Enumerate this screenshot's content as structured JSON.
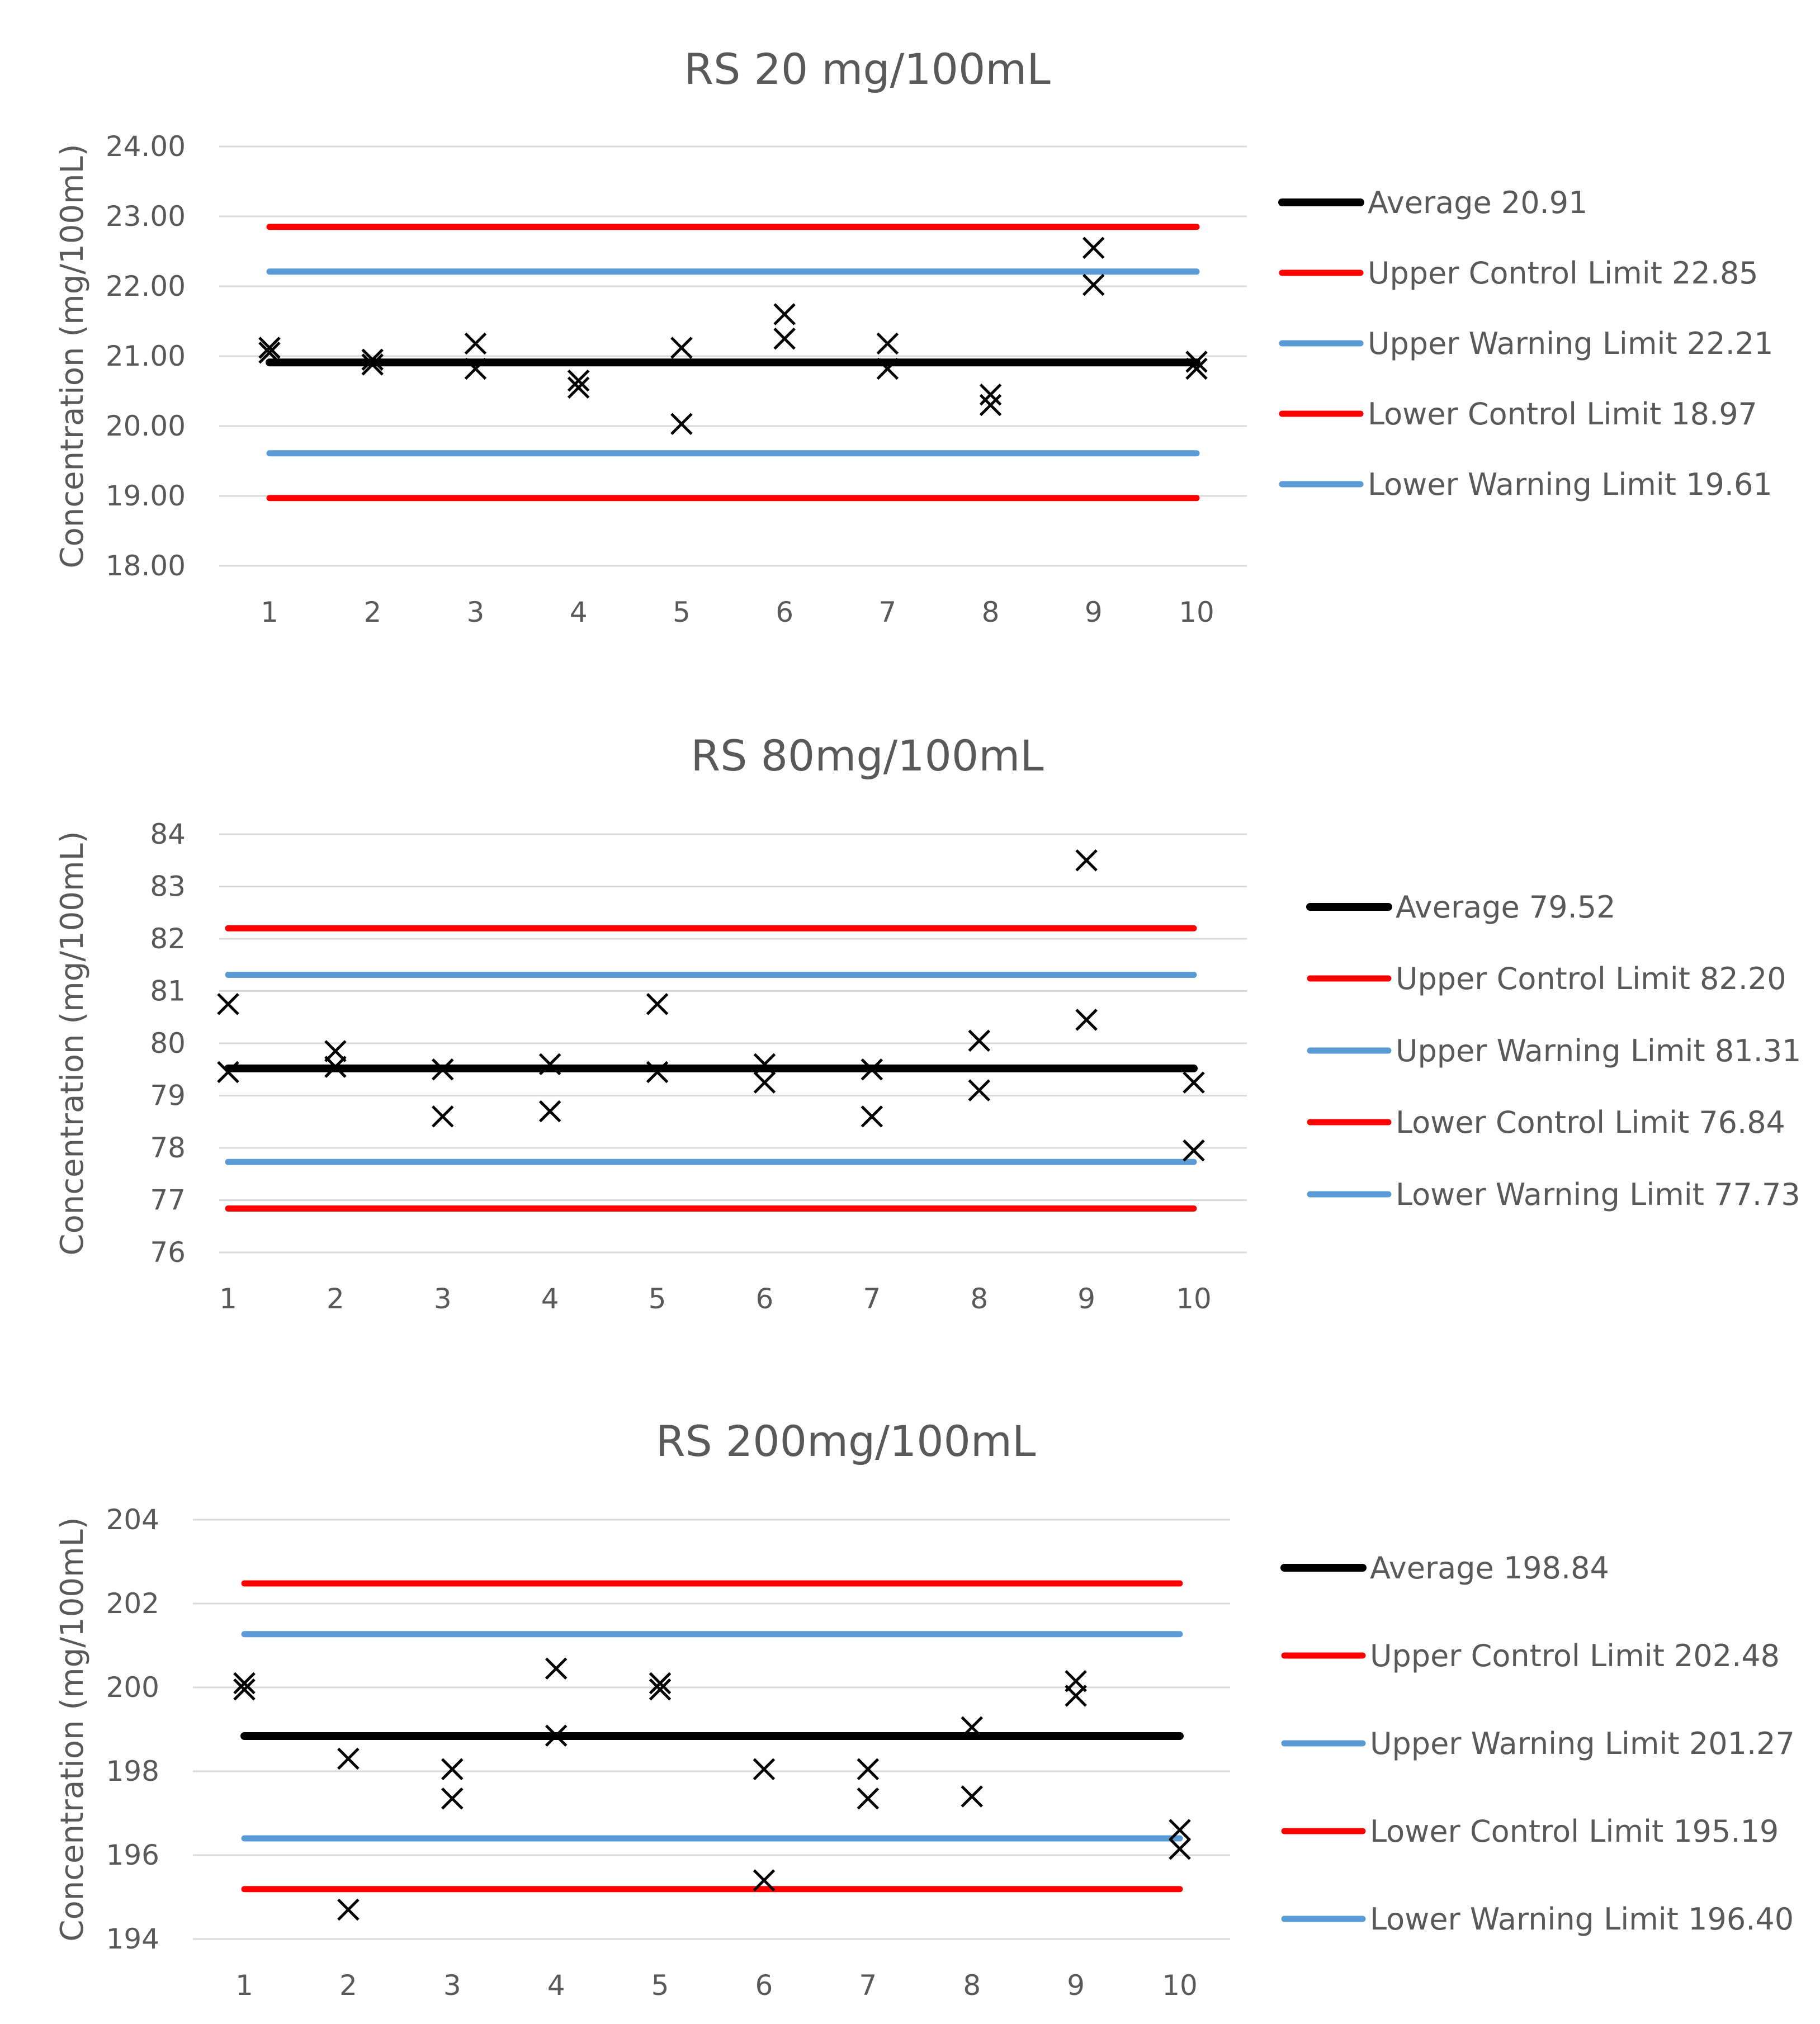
{
  "chart_data": [
    {
      "type": "line",
      "title": "RS 20 mg/100mL",
      "ylabel": "Concentration (mg/100mL)",
      "xlabel": "",
      "categories": [
        "1",
        "2",
        "3",
        "4",
        "5",
        "6",
        "7",
        "8",
        "9",
        "10"
      ],
      "ylim": [
        18,
        24
      ],
      "yticks": [
        "18.00",
        "19.00",
        "20.00",
        "21.00",
        "22.00",
        "23.00",
        "24.00"
      ],
      "grid": true,
      "legend_position": "right",
      "lines": [
        {
          "name": "Average 20.91",
          "value": 20.91,
          "color": "#000000"
        },
        {
          "name": "Upper Control Limit 22.85",
          "value": 22.85,
          "color": "#ff0000"
        },
        {
          "name": "Upper Warning Limit 22.21",
          "value": 22.21,
          "color": "#5b9bd5"
        },
        {
          "name": "Lower Control Limit 18.97",
          "value": 18.97,
          "color": "#ff0000"
        },
        {
          "name": "Lower Warning Limit 19.61",
          "value": 19.61,
          "color": "#5b9bd5"
        }
      ],
      "points": [
        {
          "x": 1,
          "y": 21.12
        },
        {
          "x": 1,
          "y": 21.05
        },
        {
          "x": 2,
          "y": 20.95
        },
        {
          "x": 2,
          "y": 20.88
        },
        {
          "x": 3,
          "y": 21.18
        },
        {
          "x": 3,
          "y": 20.82
        },
        {
          "x": 4,
          "y": 20.65
        },
        {
          "x": 4,
          "y": 20.55
        },
        {
          "x": 5,
          "y": 21.12
        },
        {
          "x": 5,
          "y": 20.03
        },
        {
          "x": 6,
          "y": 21.6
        },
        {
          "x": 6,
          "y": 21.25
        },
        {
          "x": 7,
          "y": 21.18
        },
        {
          "x": 7,
          "y": 20.82
        },
        {
          "x": 8,
          "y": 20.45
        },
        {
          "x": 8,
          "y": 20.3
        },
        {
          "x": 9,
          "y": 22.55
        },
        {
          "x": 9,
          "y": 22.02
        },
        {
          "x": 10,
          "y": 20.92
        },
        {
          "x": 10,
          "y": 20.82
        }
      ]
    },
    {
      "type": "line",
      "title": "RS 80mg/100mL",
      "ylabel": "Concentration (mg/100mL)",
      "xlabel": "",
      "categories": [
        "1",
        "2",
        "3",
        "4",
        "5",
        "6",
        "7",
        "8",
        "9",
        "10"
      ],
      "ylim": [
        76,
        84
      ],
      "yticks": [
        "76",
        "77",
        "78",
        "79",
        "80",
        "81",
        "82",
        "83",
        "84"
      ],
      "grid": true,
      "legend_position": "right",
      "lines": [
        {
          "name": "Average 79.52",
          "value": 79.52,
          "color": "#000000"
        },
        {
          "name": "Upper Control Limit 82.20",
          "value": 82.2,
          "color": "#ff0000"
        },
        {
          "name": "Upper Warning Limit 81.31",
          "value": 81.31,
          "color": "#5b9bd5"
        },
        {
          "name": "Lower Control Limit 76.84",
          "value": 76.84,
          "color": "#ff0000"
        },
        {
          "name": "Lower Warning Limit 77.73",
          "value": 77.73,
          "color": "#5b9bd5"
        }
      ],
      "points": [
        {
          "x": 1,
          "y": 80.75
        },
        {
          "x": 1,
          "y": 79.45
        },
        {
          "x": 2,
          "y": 79.85
        },
        {
          "x": 2,
          "y": 79.55
        },
        {
          "x": 3,
          "y": 79.5
        },
        {
          "x": 3,
          "y": 78.6
        },
        {
          "x": 4,
          "y": 79.6
        },
        {
          "x": 4,
          "y": 78.7
        },
        {
          "x": 5,
          "y": 80.75
        },
        {
          "x": 5,
          "y": 79.45
        },
        {
          "x": 6,
          "y": 79.6
        },
        {
          "x": 6,
          "y": 79.25
        },
        {
          "x": 7,
          "y": 79.5
        },
        {
          "x": 7,
          "y": 78.6
        },
        {
          "x": 8,
          "y": 80.05
        },
        {
          "x": 8,
          "y": 79.1
        },
        {
          "x": 9,
          "y": 83.5
        },
        {
          "x": 9,
          "y": 80.45
        },
        {
          "x": 10,
          "y": 79.25
        },
        {
          "x": 10,
          "y": 77.95
        }
      ]
    },
    {
      "type": "line",
      "title": "RS 200mg/100mL",
      "ylabel": "Concentration (mg/100mL)",
      "xlabel": "",
      "categories": [
        "1",
        "2",
        "3",
        "4",
        "5",
        "6",
        "7",
        "8",
        "9",
        "10"
      ],
      "ylim": [
        194,
        204
      ],
      "yticks": [
        "194",
        "196",
        "198",
        "200",
        "202",
        "204"
      ],
      "grid": true,
      "legend_position": "right",
      "lines": [
        {
          "name": "Average 198.84",
          "value": 198.84,
          "color": "#000000"
        },
        {
          "name": "Upper Control Limit 202.48",
          "value": 202.48,
          "color": "#ff0000"
        },
        {
          "name": "Upper Warning Limit 201.27",
          "value": 201.27,
          "color": "#5b9bd5"
        },
        {
          "name": "Lower Control Limit 195.19",
          "value": 195.19,
          "color": "#ff0000"
        },
        {
          "name": "Lower Warning Limit 196.40",
          "value": 196.4,
          "color": "#5b9bd5"
        }
      ],
      "points": [
        {
          "x": 1,
          "y": 200.1
        },
        {
          "x": 1,
          "y": 199.95
        },
        {
          "x": 2,
          "y": 198.3
        },
        {
          "x": 2,
          "y": 194.7
        },
        {
          "x": 3,
          "y": 198.05
        },
        {
          "x": 3,
          "y": 197.35
        },
        {
          "x": 4,
          "y": 200.45
        },
        {
          "x": 4,
          "y": 198.85
        },
        {
          "x": 5,
          "y": 200.1
        },
        {
          "x": 5,
          "y": 199.95
        },
        {
          "x": 6,
          "y": 198.05
        },
        {
          "x": 6,
          "y": 195.4
        },
        {
          "x": 7,
          "y": 198.05
        },
        {
          "x": 7,
          "y": 197.35
        },
        {
          "x": 8,
          "y": 199.05
        },
        {
          "x": 8,
          "y": 197.4
        },
        {
          "x": 9,
          "y": 200.15
        },
        {
          "x": 9,
          "y": 199.8
        },
        {
          "x": 10,
          "y": 196.6
        },
        {
          "x": 10,
          "y": 196.15
        }
      ]
    }
  ]
}
